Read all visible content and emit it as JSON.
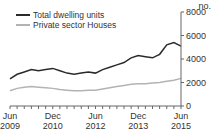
{
  "chart_data": {
    "type": "line",
    "ylabel": "no.",
    "categories": [
      "Jun 2009",
      null,
      null,
      null,
      null,
      null,
      "Dec 2010",
      null,
      null,
      null,
      null,
      null,
      "Jun 2012",
      null,
      null,
      null,
      null,
      null,
      "Dec 2013",
      null,
      null,
      null,
      null,
      null,
      "Jun 2015"
    ],
    "series": [
      {
        "name": "Total dwelling units",
        "color": "#2b2b2b",
        "values": [
          2300,
          2700,
          2900,
          3100,
          3000,
          3100,
          3200,
          3000,
          2800,
          2700,
          2800,
          2900,
          2800,
          3100,
          3300,
          3500,
          3700,
          4100,
          4300,
          4200,
          4100,
          4400,
          5200,
          5400,
          5100
        ]
      },
      {
        "name": "Private sector Houses",
        "color": "#b3b3b3",
        "values": [
          1300,
          1500,
          1600,
          1650,
          1600,
          1550,
          1500,
          1400,
          1350,
          1300,
          1300,
          1350,
          1350,
          1450,
          1550,
          1650,
          1750,
          1850,
          1900,
          1900,
          1950,
          2000,
          2100,
          2200,
          2350
        ]
      }
    ],
    "ylim": [
      0,
      8000
    ],
    "yticks": [
      0,
      2000,
      4000,
      6000,
      8000
    ],
    "legend": "upper left",
    "grid": false
  }
}
